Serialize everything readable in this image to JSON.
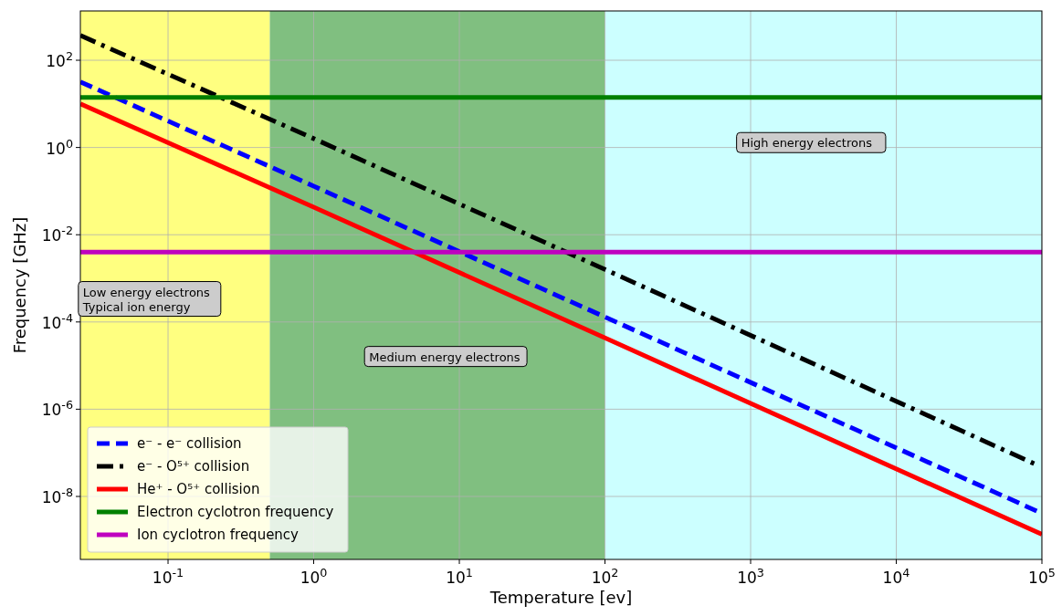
{
  "chart_data": {
    "type": "line",
    "xlabel": "Temperature [ev]",
    "ylabel": "Frequency [GHz]",
    "log": "xy",
    "xlim": [
      0.025,
      100000
    ],
    "ylim": [
      3.6e-10,
      1350
    ],
    "xticks": [
      {
        "value": 0.1,
        "label": "10$^{-1}$"
      },
      {
        "value": 1,
        "label": "10$^{0}$"
      },
      {
        "value": 10,
        "label": "10$^{1}$"
      },
      {
        "value": 100,
        "label": "10$^{2}$"
      },
      {
        "value": 1000,
        "label": "10$^{3}$"
      },
      {
        "value": 10000,
        "label": "10$^{4}$"
      },
      {
        "value": 100000,
        "label": "10$^{5}$"
      }
    ],
    "yticks": [
      {
        "value": 1e-08,
        "label": "10$^{-8}$"
      },
      {
        "value": 1e-06,
        "label": "10$^{-6}$"
      },
      {
        "value": 0.0001,
        "label": "10$^{-4}$"
      },
      {
        "value": 0.01,
        "label": "10$^{-2}$"
      },
      {
        "value": 1,
        "label": "10$^{0}$"
      },
      {
        "value": 100,
        "label": "10$^{2}$"
      }
    ],
    "grid": true,
    "legend": "bottom left",
    "series": [
      {
        "name": "e⁻ - e⁻ collision",
        "color": "#0000ff",
        "line_style": "dashed",
        "x": [
          0.025,
          1,
          100,
          100000
        ],
        "values": [
          32,
          0.13,
          0.00013,
          4.1e-09
        ]
      },
      {
        "name": "e⁻ - O⁵⁺ collision",
        "color": "#000000",
        "line_style": "dashdot",
        "x": [
          0.025,
          1,
          100,
          90000
        ],
        "values": [
          370,
          1.6,
          0.0016,
          5.5e-08
        ]
      },
      {
        "name": "He⁺ - O⁵⁺ collision",
        "color": "#ff0000",
        "line_style": "solid",
        "x": [
          0.025,
          1,
          100,
          100000
        ],
        "values": [
          10,
          0.043,
          4.3e-05,
          1.35e-09
        ]
      },
      {
        "name": "Electron cyclotron frequency",
        "color": "#008000",
        "line_style": "solid",
        "x": [
          0.025,
          100000
        ],
        "values": [
          14,
          14
        ]
      },
      {
        "name": "Ion cyclotron frequency",
        "color": "#bf00bf",
        "line_style": "solid",
        "x": [
          0.025,
          100000
        ],
        "values": [
          0.004,
          0.004
        ]
      }
    ],
    "bands": [
      {
        "axis": "x",
        "from": 0.025,
        "to": 0.5,
        "color": "#ffff80"
      },
      {
        "axis": "x",
        "from": 0.5,
        "to": 100,
        "color": "#80bf80"
      },
      {
        "axis": "x",
        "from": 100,
        "to": 100000,
        "color": "#ccffff"
      }
    ],
    "annotations": [
      "Low energy electrons\nTypical ion energy",
      "Medium energy electrons",
      "High energy electrons"
    ]
  }
}
